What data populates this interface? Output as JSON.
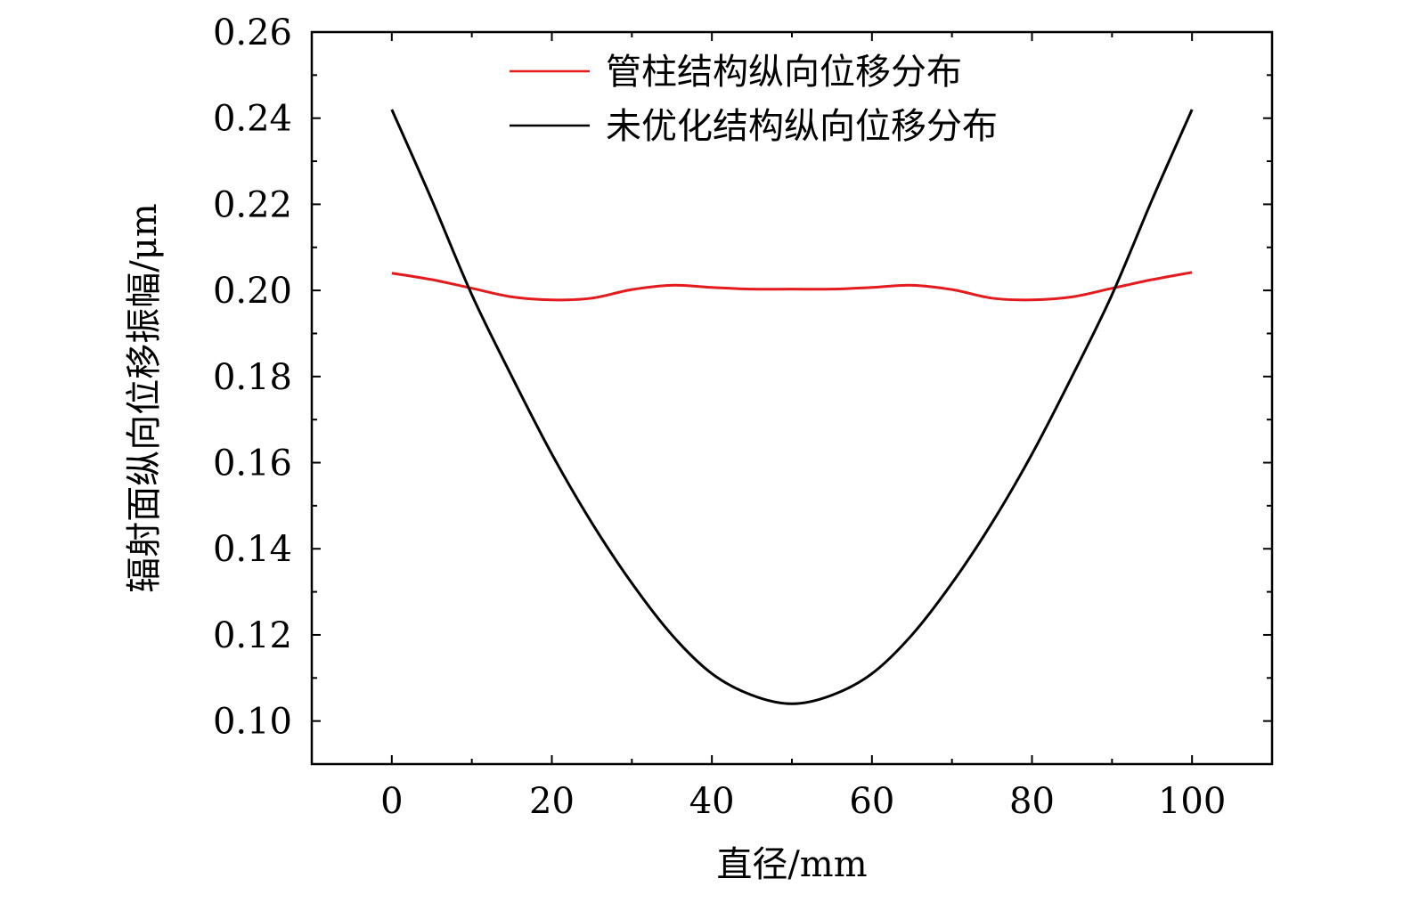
{
  "chart_data": {
    "type": "line",
    "title": "",
    "xlabel": "直径/mm",
    "ylabel": "辐射面纵向位移振幅/μm",
    "xlim": [
      -10,
      110
    ],
    "ylim": [
      0.09,
      0.26
    ],
    "x_ticks": [
      0,
      20,
      40,
      60,
      80,
      100
    ],
    "x_tick_labels": [
      "0",
      "20",
      "40",
      "60",
      "80",
      "100"
    ],
    "y_ticks": [
      0.1,
      0.12,
      0.14,
      0.16,
      0.18,
      0.2,
      0.22,
      0.24,
      0.26
    ],
    "y_tick_labels": [
      "0.10",
      "0.12",
      "0.14",
      "0.16",
      "0.18",
      "0.20",
      "0.22",
      "0.24",
      "0.26"
    ],
    "grid": false,
    "legend_position": "top-center",
    "series": [
      {
        "name": "管柱结构纵向位移分布",
        "color": "#e41a1c",
        "x": [
          0,
          5,
          10,
          15,
          20,
          25,
          30,
          35,
          40,
          45,
          50,
          55,
          60,
          65,
          70,
          75,
          80,
          85,
          90,
          95,
          100
        ],
        "y": [
          0.204,
          0.2025,
          0.2005,
          0.1985,
          0.1978,
          0.1982,
          0.2002,
          0.2012,
          0.2007,
          0.2003,
          0.2003,
          0.2003,
          0.2007,
          0.2012,
          0.2002,
          0.1982,
          0.1978,
          0.1985,
          0.2005,
          0.2025,
          0.2042
        ]
      },
      {
        "name": "未优化结构纵向位移分布",
        "color": "#000000",
        "x": [
          0,
          5,
          10,
          15,
          20,
          25,
          30,
          35,
          40,
          45,
          50,
          55,
          60,
          65,
          70,
          75,
          80,
          85,
          90,
          95,
          100
        ],
        "y": [
          0.242,
          0.221,
          0.199,
          0.18,
          0.162,
          0.146,
          0.132,
          0.12,
          0.111,
          0.106,
          0.104,
          0.106,
          0.111,
          0.12,
          0.132,
          0.146,
          0.162,
          0.18,
          0.199,
          0.221,
          0.242
        ]
      }
    ]
  }
}
